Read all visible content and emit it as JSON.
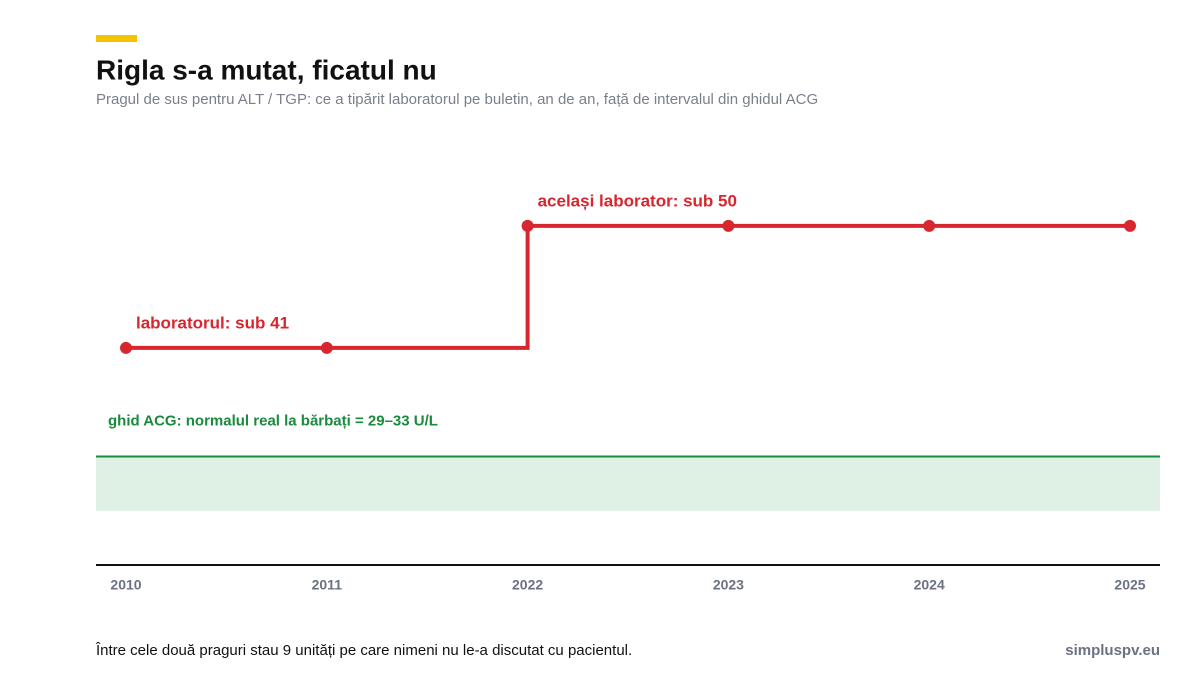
{
  "chart_data": {
    "type": "step",
    "title": "Rigla s-a mutat, ficatul nu",
    "subtitle": "Pragul de sus pentru ALT / TGP: ce a tipărit laboratorul pe buletin, an de an, față de intervalul din ghidul ACG",
    "categories": [
      "2010",
      "2011",
      "2022",
      "2023",
      "2024",
      "2025"
    ],
    "values": [
      41,
      41,
      50,
      50,
      50,
      50
    ],
    "color": "#d7262e",
    "step": "post",
    "ylim": [
      25,
      55
    ],
    "annotations": [
      {
        "index": 0,
        "text": "laboratorul: sub 41"
      },
      {
        "index": 2,
        "text": "același laborator: sub 50"
      }
    ],
    "band": {
      "from": 29,
      "to": 33,
      "label": "ghid ACG: normalul real la bărbați = 29–33 U/L",
      "color": "#1a8a3c",
      "fill": "#dff1e4"
    },
    "note": "Între cele două praguri stau 9 unități pe care nimeni nu le-a discutat cu pacientul.",
    "source": "simpluspv.eu"
  }
}
